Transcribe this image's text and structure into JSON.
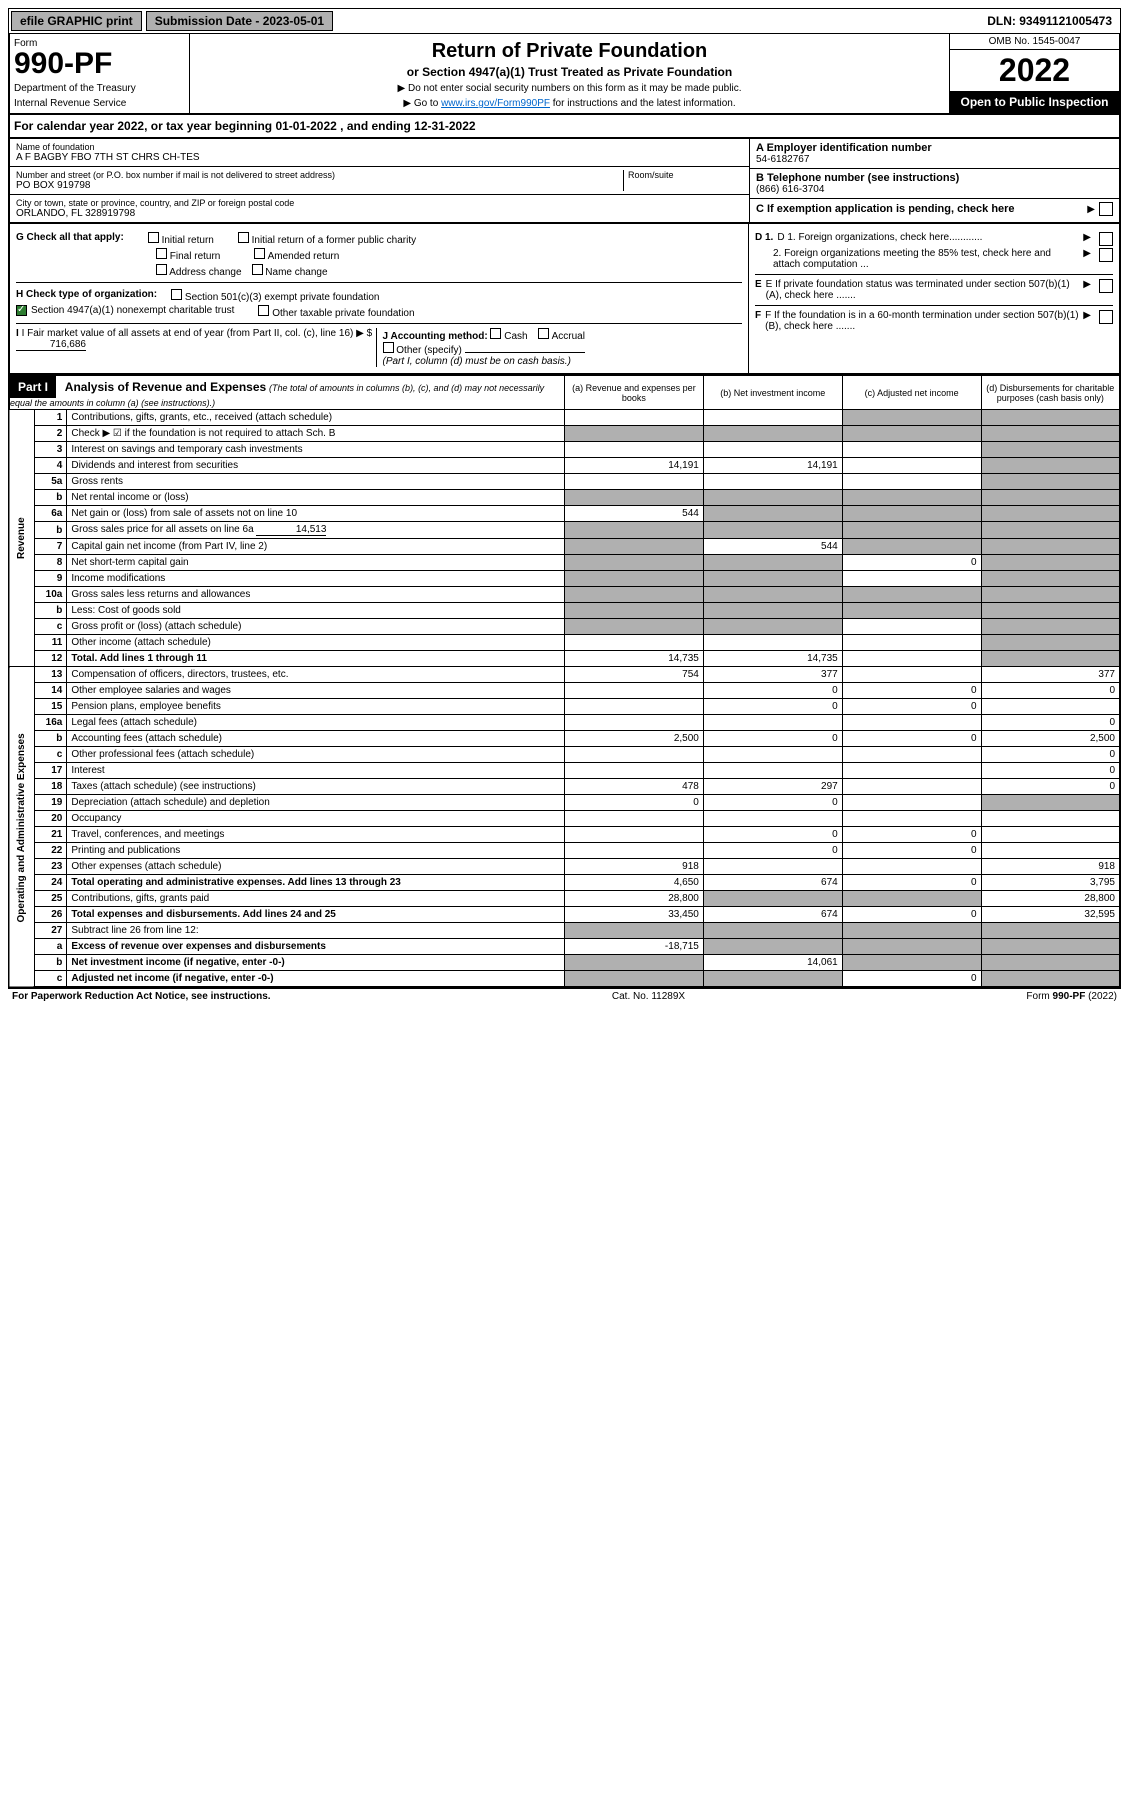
{
  "top": {
    "efile": "efile GRAPHIC print",
    "subdate_label": "Submission Date - 2023-05-01",
    "dln": "DLN: 93491121005473"
  },
  "header": {
    "form_label": "Form",
    "form_number": "990-PF",
    "dept1": "Department of the Treasury",
    "dept2": "Internal Revenue Service",
    "title": "Return of Private Foundation",
    "subtitle": "or Section 4947(a)(1) Trust Treated as Private Foundation",
    "instr1": "▶ Do not enter social security numbers on this form as it may be made public.",
    "instr2_prefix": "▶ Go to ",
    "instr2_link": "www.irs.gov/Form990PF",
    "instr2_suffix": " for instructions and the latest information.",
    "omb": "OMB No. 1545-0047",
    "year": "2022",
    "open": "Open to Public Inspection"
  },
  "calyear": "For calendar year 2022, or tax year beginning 01-01-2022                     , and ending 12-31-2022",
  "org": {
    "name_label": "Name of foundation",
    "name": "A F BAGBY FBO 7TH ST CHRS CH-TES",
    "addr_label": "Number and street (or P.O. box number if mail is not delivered to street address)",
    "room_label": "Room/suite",
    "addr": "PO BOX 919798",
    "city_label": "City or town, state or province, country, and ZIP or foreign postal code",
    "city": "ORLANDO, FL  328919798",
    "a_label": "A Employer identification number",
    "ein": "54-6182767",
    "b_label": "B Telephone number (see instructions)",
    "phone": "(866) 616-3704",
    "c_label": "C If exemption application is pending, check here"
  },
  "checks": {
    "g_label": "G Check all that apply:",
    "g_initial": "Initial return",
    "g_initial_former": "Initial return of a former public charity",
    "g_final": "Final return",
    "g_amended": "Amended return",
    "g_address": "Address change",
    "g_name": "Name change",
    "h_label": "H Check type of organization:",
    "h_501c3": "Section 501(c)(3) exempt private foundation",
    "h_4947": "Section 4947(a)(1) nonexempt charitable trust",
    "h_other_tax": "Other taxable private foundation",
    "i_label": "I Fair market value of all assets at end of year (from Part II, col. (c), line 16) ▶ $",
    "i_value": "716,686",
    "j_label": "J Accounting method:",
    "j_cash": "Cash",
    "j_accrual": "Accrual",
    "j_other": "Other (specify)",
    "j_note": "(Part I, column (d) must be on cash basis.)",
    "d1": "D 1. Foreign organizations, check here............",
    "d2": "2. Foreign organizations meeting the 85% test, check here and attach computation ...",
    "e": "E If private foundation status was terminated under section 507(b)(1)(A), check here .......",
    "f": "F If the foundation is in a 60-month termination under section 507(b)(1)(B), check here ......."
  },
  "part1": {
    "label": "Part I",
    "title": "Analysis of Revenue and Expenses",
    "note": "(The total of amounts in columns (b), (c), and (d) may not necessarily equal the amounts in column (a) (see instructions).)",
    "col_a": "(a) Revenue and expenses per books",
    "col_b": "(b) Net investment income",
    "col_c": "(c) Adjusted net income",
    "col_d": "(d) Disbursements for charitable purposes (cash basis only)"
  },
  "side_labels": {
    "revenue": "Revenue",
    "expenses": "Operating and Administrative Expenses"
  },
  "rows": [
    {
      "n": "1",
      "desc": "Contributions, gifts, grants, etc., received (attach schedule)",
      "a": "",
      "b": "",
      "c": "shade",
      "d": "shade"
    },
    {
      "n": "2",
      "desc": "Check ▶ ☑ if the foundation is not required to attach Sch. B",
      "a": "shade",
      "b": "shade",
      "c": "shade",
      "d": "shade",
      "bold_not": true
    },
    {
      "n": "3",
      "desc": "Interest on savings and temporary cash investments",
      "a": "",
      "b": "",
      "c": "",
      "d": "shade"
    },
    {
      "n": "4",
      "desc": "Dividends and interest from securities",
      "a": "14,191",
      "b": "14,191",
      "c": "",
      "d": "shade"
    },
    {
      "n": "5a",
      "desc": "Gross rents",
      "a": "",
      "b": "",
      "c": "",
      "d": "shade"
    },
    {
      "n": "b",
      "desc": "Net rental income or (loss)",
      "a": "shade",
      "b": "shade",
      "c": "shade",
      "d": "shade",
      "underline": true
    },
    {
      "n": "6a",
      "desc": "Net gain or (loss) from sale of assets not on line 10",
      "a": "544",
      "b": "shade",
      "c": "shade",
      "d": "shade"
    },
    {
      "n": "b",
      "desc": "Gross sales price for all assets on line 6a",
      "inline_val": "14,513",
      "a": "shade",
      "b": "shade",
      "c": "shade",
      "d": "shade"
    },
    {
      "n": "7",
      "desc": "Capital gain net income (from Part IV, line 2)",
      "a": "shade",
      "b": "544",
      "c": "shade",
      "d": "shade"
    },
    {
      "n": "8",
      "desc": "Net short-term capital gain",
      "a": "shade",
      "b": "shade",
      "c": "0",
      "d": "shade"
    },
    {
      "n": "9",
      "desc": "Income modifications",
      "a": "shade",
      "b": "shade",
      "c": "",
      "d": "shade"
    },
    {
      "n": "10a",
      "desc": "Gross sales less returns and allowances",
      "a": "shade",
      "b": "shade",
      "c": "shade",
      "d": "shade",
      "underline": true
    },
    {
      "n": "b",
      "desc": "Less: Cost of goods sold",
      "a": "shade",
      "b": "shade",
      "c": "shade",
      "d": "shade",
      "underline": true
    },
    {
      "n": "c",
      "desc": "Gross profit or (loss) (attach schedule)",
      "a": "shade",
      "b": "shade",
      "c": "",
      "d": "shade"
    },
    {
      "n": "11",
      "desc": "Other income (attach schedule)",
      "a": "",
      "b": "",
      "c": "",
      "d": "shade"
    },
    {
      "n": "12",
      "desc": "Total. Add lines 1 through 11",
      "a": "14,735",
      "b": "14,735",
      "c": "",
      "d": "shade",
      "bold": true
    }
  ],
  "exp_rows": [
    {
      "n": "13",
      "desc": "Compensation of officers, directors, trustees, etc.",
      "a": "754",
      "b": "377",
      "c": "",
      "d": "377"
    },
    {
      "n": "14",
      "desc": "Other employee salaries and wages",
      "a": "",
      "b": "0",
      "c": "0",
      "d": "0"
    },
    {
      "n": "15",
      "desc": "Pension plans, employee benefits",
      "a": "",
      "b": "0",
      "c": "0",
      "d": ""
    },
    {
      "n": "16a",
      "desc": "Legal fees (attach schedule)",
      "a": "",
      "b": "",
      "c": "",
      "d": "0"
    },
    {
      "n": "b",
      "desc": "Accounting fees (attach schedule)",
      "a": "2,500",
      "b": "0",
      "c": "0",
      "d": "2,500"
    },
    {
      "n": "c",
      "desc": "Other professional fees (attach schedule)",
      "a": "",
      "b": "",
      "c": "",
      "d": "0"
    },
    {
      "n": "17",
      "desc": "Interest",
      "a": "",
      "b": "",
      "c": "",
      "d": "0"
    },
    {
      "n": "18",
      "desc": "Taxes (attach schedule) (see instructions)",
      "a": "478",
      "b": "297",
      "c": "",
      "d": "0"
    },
    {
      "n": "19",
      "desc": "Depreciation (attach schedule) and depletion",
      "a": "0",
      "b": "0",
      "c": "",
      "d": "shade"
    },
    {
      "n": "20",
      "desc": "Occupancy",
      "a": "",
      "b": "",
      "c": "",
      "d": ""
    },
    {
      "n": "21",
      "desc": "Travel, conferences, and meetings",
      "a": "",
      "b": "0",
      "c": "0",
      "d": ""
    },
    {
      "n": "22",
      "desc": "Printing and publications",
      "a": "",
      "b": "0",
      "c": "0",
      "d": ""
    },
    {
      "n": "23",
      "desc": "Other expenses (attach schedule)",
      "a": "918",
      "b": "",
      "c": "",
      "d": "918"
    },
    {
      "n": "24",
      "desc": "Total operating and administrative expenses. Add lines 13 through 23",
      "a": "4,650",
      "b": "674",
      "c": "0",
      "d": "3,795",
      "bold": true
    },
    {
      "n": "25",
      "desc": "Contributions, gifts, grants paid",
      "a": "28,800",
      "b": "shade",
      "c": "shade",
      "d": "28,800"
    },
    {
      "n": "26",
      "desc": "Total expenses and disbursements. Add lines 24 and 25",
      "a": "33,450",
      "b": "674",
      "c": "0",
      "d": "32,595",
      "bold": true
    },
    {
      "n": "27",
      "desc": "Subtract line 26 from line 12:",
      "a": "shade",
      "b": "shade",
      "c": "shade",
      "d": "shade"
    },
    {
      "n": "a",
      "desc": "Excess of revenue over expenses and disbursements",
      "a": "-18,715",
      "b": "shade",
      "c": "shade",
      "d": "shade",
      "bold": true
    },
    {
      "n": "b",
      "desc": "Net investment income (if negative, enter -0-)",
      "a": "shade",
      "b": "14,061",
      "c": "shade",
      "d": "shade",
      "bold": true
    },
    {
      "n": "c",
      "desc": "Adjusted net income (if negative, enter -0-)",
      "a": "shade",
      "b": "shade",
      "c": "0",
      "d": "shade",
      "bold": true
    }
  ],
  "footer": {
    "left": "For Paperwork Reduction Act Notice, see instructions.",
    "mid": "Cat. No. 11289X",
    "right": "Form 990-PF (2022)"
  },
  "colors": {
    "shade": "#b0b0b0",
    "header_bg": "#000000",
    "check_green": "#2e7d32"
  }
}
